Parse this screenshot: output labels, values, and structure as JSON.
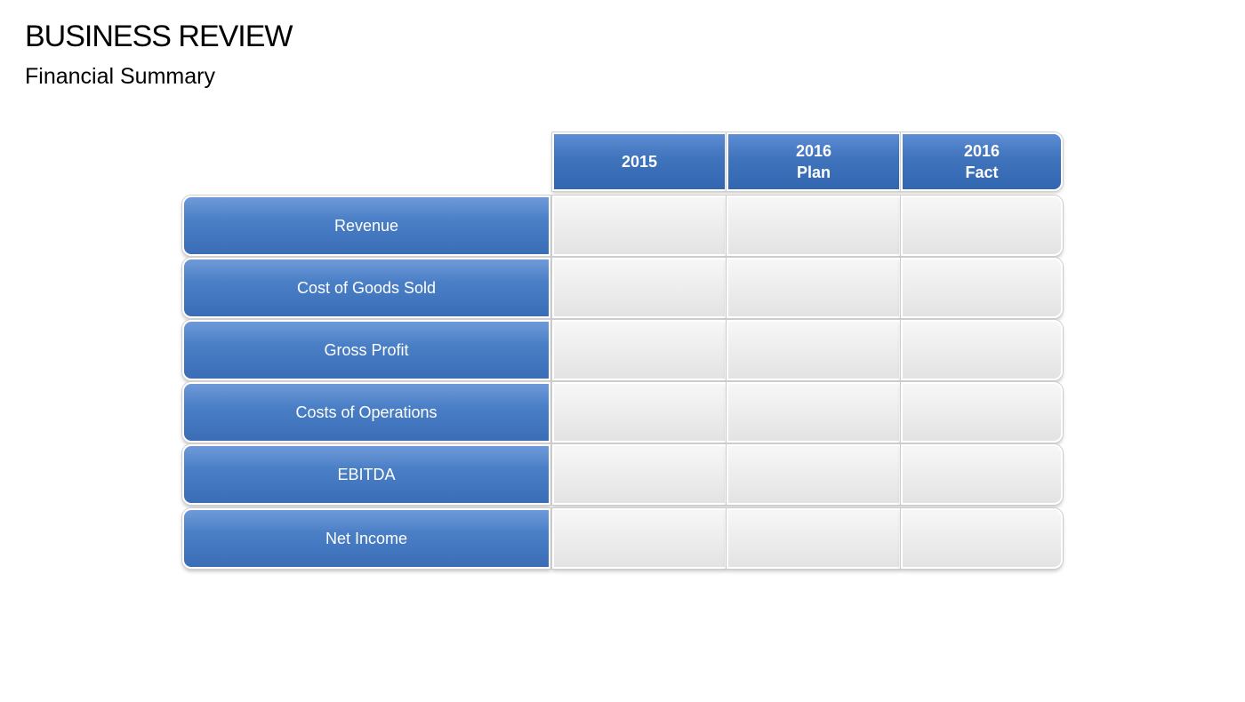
{
  "title": "BUSINESS REVIEW",
  "subtitle": "Financial Summary",
  "table": {
    "columns": [
      {
        "line1": "2015",
        "line2": ""
      },
      {
        "line1": "2016",
        "line2": "Plan"
      },
      {
        "line1": "2016",
        "line2": "Fact"
      }
    ],
    "rows": [
      "Revenue",
      "Cost of Goods Sold",
      "Gross Profit",
      "Costs of Operations",
      "EBITDA",
      "Net Income"
    ]
  },
  "colors": {
    "header_blue": "#3f73bc",
    "row_blue": "#4a7fc6",
    "cell_gray": "#ececec"
  }
}
